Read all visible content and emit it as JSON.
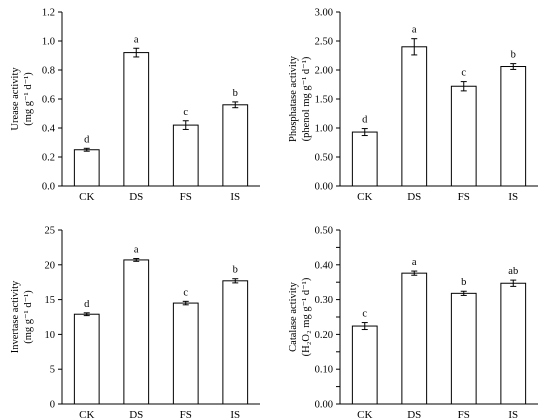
{
  "chart_data": [
    {
      "type": "bar",
      "categories": [
        "CK",
        "DS",
        "FS",
        "IS"
      ],
      "values": [
        0.25,
        0.92,
        0.42,
        0.56
      ],
      "errors": [
        0.01,
        0.03,
        0.03,
        0.02
      ],
      "significance": [
        "d",
        "a",
        "c",
        "b"
      ],
      "ylabel_lines": [
        "Urease activity",
        "(mg g⁻¹ d⁻¹)"
      ],
      "ylim": [
        0,
        1.2
      ],
      "yticks": [
        0,
        0.2,
        0.4,
        0.6,
        0.8,
        1.0,
        1.2
      ],
      "ytick_labels": [
        "0.0",
        "0.2",
        "0.4",
        "0.6",
        "0.8",
        "1.0",
        "1.2"
      ]
    },
    {
      "type": "bar",
      "categories": [
        "CK",
        "DS",
        "FS",
        "IS"
      ],
      "values": [
        0.93,
        2.4,
        1.72,
        2.06
      ],
      "errors": [
        0.06,
        0.14,
        0.08,
        0.05
      ],
      "significance": [
        "d",
        "a",
        "c",
        "b"
      ],
      "ylabel_lines": [
        "Phosphatase activity",
        "(phenol mg g⁻¹ d⁻¹)"
      ],
      "ylim": [
        0,
        3.0
      ],
      "yticks": [
        0,
        0.5,
        1.0,
        1.5,
        2.0,
        2.5,
        3.0
      ],
      "ytick_labels": [
        "0.00",
        "0.50",
        "1.00",
        "1.50",
        "2.00",
        "2.50",
        "3.00"
      ]
    },
    {
      "type": "bar",
      "categories": [
        "CK",
        "DS",
        "FS",
        "IS"
      ],
      "values": [
        12.9,
        20.7,
        14.5,
        17.7
      ],
      "errors": [
        0.2,
        0.2,
        0.25,
        0.3
      ],
      "significance": [
        "d",
        "a",
        "c",
        "b"
      ],
      "ylabel_lines": [
        "Invertase activity",
        "(mg g⁻¹ d⁻¹)"
      ],
      "ylim": [
        0,
        25
      ],
      "yticks": [
        0,
        5,
        10,
        15,
        20,
        25
      ],
      "ytick_labels": [
        "0",
        "5",
        "10",
        "15",
        "20",
        "25"
      ]
    },
    {
      "type": "bar",
      "categories": [
        "CK",
        "DS",
        "FS",
        "IS"
      ],
      "values": [
        0.224,
        0.376,
        0.318,
        0.347
      ],
      "errors": [
        0.01,
        0.006,
        0.006,
        0.009
      ],
      "significance": [
        "c",
        "a",
        "b",
        "ab"
      ],
      "ylabel_lines": [
        "Catalase activity",
        "(H₂O₂ mg g⁻¹ d⁻¹)"
      ],
      "ylim": [
        0,
        0.5
      ],
      "yticks": [
        0,
        0.05,
        0.1,
        0.15,
        0.2,
        0.25,
        0.3,
        0.35,
        0.4,
        0.45,
        0.5
      ],
      "ytick_labels": [
        "0.00",
        "",
        "0.10",
        "",
        "0.20",
        "",
        "0.30",
        "",
        "0.40",
        "",
        "0.50"
      ]
    }
  ]
}
